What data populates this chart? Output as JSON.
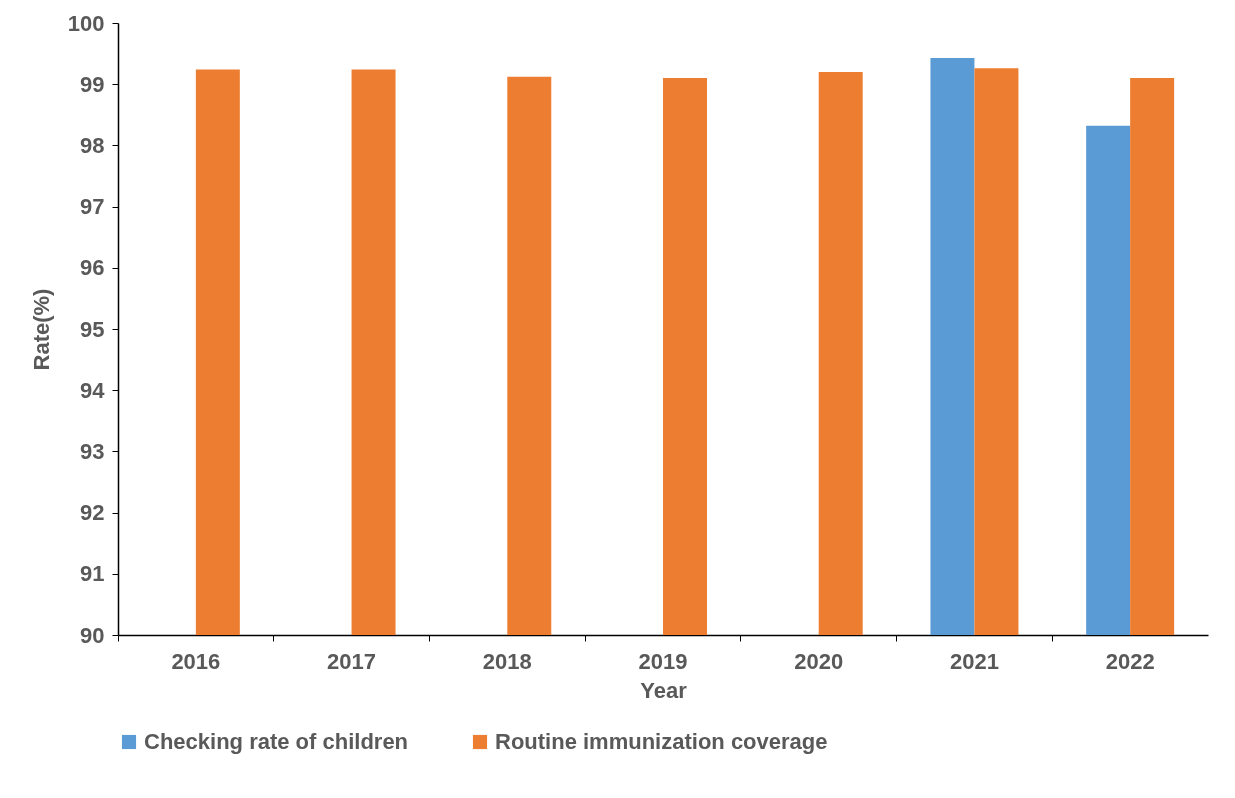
{
  "chart_data": {
    "type": "bar",
    "xlabel": "Year",
    "ylabel": "Rate(%)",
    "categories": [
      "2016",
      "2017",
      "2018",
      "2019",
      "2020",
      "2021",
      "2022"
    ],
    "series": [
      {
        "name": "Checking rate of children",
        "color": "#5b9bd5",
        "values": [
          null,
          null,
          null,
          null,
          null,
          99.43,
          98.32
        ]
      },
      {
        "name": "Routine immunization coverage",
        "color": "#ed7d31",
        "values": [
          99.24,
          99.24,
          99.12,
          99.1,
          99.2,
          99.26,
          99.1
        ]
      }
    ],
    "ylim": [
      90,
      100
    ],
    "yticks": [
      90,
      91,
      92,
      93,
      94,
      95,
      96,
      97,
      98,
      99,
      100
    ],
    "grid": false,
    "legend": "bottom"
  }
}
